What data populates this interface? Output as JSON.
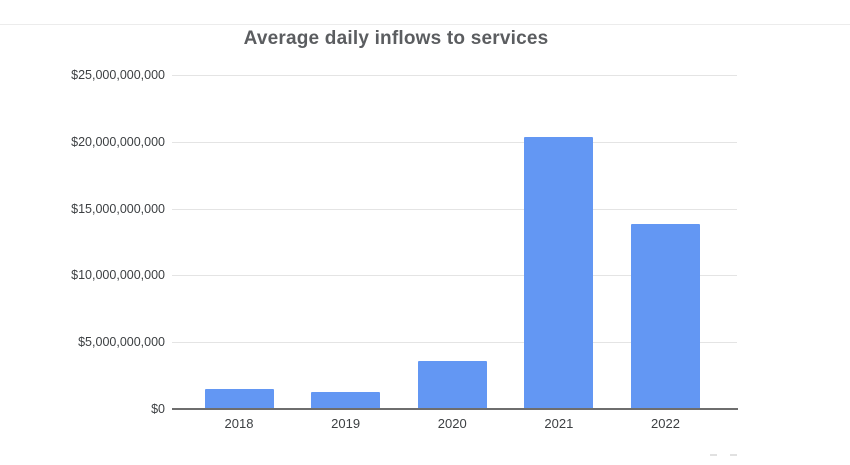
{
  "page": {
    "background": "#ffffff",
    "divider_color": "#ececec",
    "text_color": "#3d4043",
    "title_color": "#5b5d60"
  },
  "chart_data": {
    "type": "bar",
    "title": "Average daily inflows to services",
    "xlabel": "",
    "ylabel": "",
    "categories": [
      "2018",
      "2019",
      "2020",
      "2021",
      "2022"
    ],
    "values": [
      1450000000,
      1200000000,
      3550000000,
      20250000000,
      13750000000
    ],
    "ylim": [
      0,
      25000000000
    ],
    "y_ticks": [
      25000000000,
      20000000000,
      15000000000,
      10000000000,
      5000000000,
      0
    ],
    "y_tick_labels": [
      "$25,000,000,000",
      "$20,000,000,000",
      "$15,000,000,000",
      "$10,000,000,000",
      "$5,000,000,000",
      "$0"
    ],
    "grid": true,
    "legend": "none",
    "bar_color": "#6397f3",
    "axis_color": "#6e6e6e",
    "gridline_color": "#e4e4e4"
  }
}
